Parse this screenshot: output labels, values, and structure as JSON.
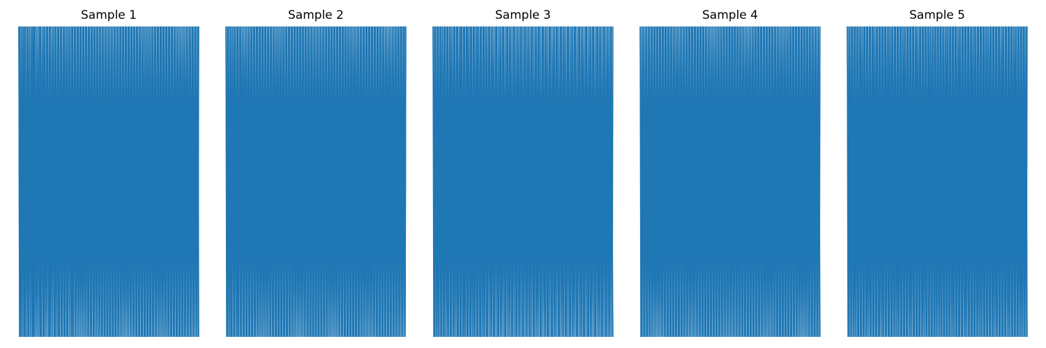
{
  "figure": {
    "background": "#ffffff"
  },
  "chart_data": [
    {
      "type": "line",
      "title": "Sample 1",
      "axis_visible": false,
      "grid": false,
      "color": "#1f77b4",
      "xlim": [
        0,
        1
      ],
      "ylim": [
        0,
        1
      ],
      "description_values": "series oscillates between ~0 and ~1 across the full x range",
      "x": [
        0.0,
        0.004,
        0.006,
        0.011,
        0.015,
        0.018,
        0.024,
        0.03,
        0.036,
        0.041,
        0.048,
        0.054,
        0.061,
        0.065,
        0.07,
        0.075,
        0.078,
        0.085,
        0.09,
        0.096,
        0.108,
        0.112,
        0.119,
        0.124,
        0.131,
        0.138,
        0.145,
        0.15,
        0.16,
        0.168,
        0.175,
        0.18,
        0.192,
        0.2,
        0.206,
        0.212,
        0.218,
        0.224,
        0.233,
        0.24,
        0.248,
        0.255,
        0.262,
        0.27,
        0.278,
        0.29,
        0.296,
        0.302,
        0.31,
        0.318,
        0.326,
        0.334,
        0.341,
        0.35,
        0.358,
        0.366,
        0.374,
        0.382,
        0.39,
        0.398,
        0.406,
        0.414,
        0.42,
        0.428,
        0.436,
        0.444,
        0.452,
        0.46,
        0.468,
        0.476,
        0.484,
        0.492,
        0.5,
        0.508,
        0.516,
        0.524,
        0.532,
        0.54,
        0.548,
        0.556,
        0.564,
        0.572,
        0.58,
        0.588,
        0.596,
        0.604,
        0.612,
        0.62,
        0.628,
        0.636,
        0.644,
        0.652,
        0.66,
        0.668,
        0.676,
        0.684,
        0.692,
        0.7,
        0.708,
        0.716,
        0.724,
        0.732,
        0.74,
        0.748,
        0.756,
        0.764,
        0.772,
        0.78,
        0.788,
        0.796,
        0.804,
        0.812,
        0.82,
        0.828,
        0.836,
        0.844,
        0.852,
        0.86,
        0.868,
        0.876,
        0.884,
        0.892,
        0.9,
        0.908,
        0.916,
        0.924,
        0.932,
        0.94,
        0.948,
        0.956,
        0.964,
        0.972,
        0.98,
        0.988,
        0.996,
        1.0
      ],
      "y": [
        1,
        0,
        1,
        0,
        1,
        0,
        1,
        0,
        1,
        0,
        1,
        0,
        1,
        0,
        1,
        0,
        1,
        0,
        1,
        0,
        1,
        0,
        1,
        0,
        1,
        0,
        1,
        0,
        1,
        0,
        1,
        0,
        1,
        0,
        1,
        0,
        1,
        0,
        1,
        0,
        1,
        0,
        1,
        0,
        1,
        0,
        1,
        0,
        1,
        0,
        1,
        0,
        1,
        0,
        1,
        0,
        1,
        0,
        1,
        0,
        1,
        0,
        1,
        0,
        1,
        0,
        1,
        0,
        1,
        0,
        1,
        0,
        1,
        0,
        1,
        0,
        1,
        0,
        1,
        0,
        1,
        0,
        1,
        0,
        1,
        0,
        1,
        0,
        1,
        0,
        1,
        0,
        1,
        0,
        1,
        0,
        1,
        0,
        1,
        0,
        1,
        0,
        1,
        0,
        1,
        0,
        1,
        0,
        1,
        0,
        1,
        0,
        1,
        0,
        1,
        0,
        1,
        0,
        1,
        0,
        1,
        0,
        1,
        0,
        1,
        0,
        1,
        0,
        1,
        0,
        1,
        0,
        1,
        0,
        1,
        0
      ]
    },
    {
      "type": "line",
      "title": "Sample 2",
      "axis_visible": false,
      "grid": false,
      "color": "#1f77b4",
      "xlim": [
        0,
        1
      ],
      "ylim": [
        0,
        1
      ],
      "x": [
        0.0,
        0.006,
        0.012,
        0.019,
        0.025,
        0.031,
        0.038,
        0.045,
        0.052,
        0.058,
        0.065,
        0.071,
        0.078,
        0.085,
        0.092,
        0.1,
        0.108,
        0.116,
        0.124,
        0.132,
        0.14,
        0.148,
        0.156,
        0.164,
        0.172,
        0.18,
        0.188,
        0.196,
        0.204,
        0.212,
        0.22,
        0.228,
        0.236,
        0.244,
        0.252,
        0.26,
        0.268,
        0.276,
        0.284,
        0.292,
        0.3,
        0.308,
        0.316,
        0.324,
        0.332,
        0.34,
        0.348,
        0.356,
        0.364,
        0.372,
        0.38,
        0.388,
        0.396,
        0.404,
        0.412,
        0.42,
        0.428,
        0.436,
        0.444,
        0.452,
        0.46,
        0.468,
        0.476,
        0.484,
        0.492,
        0.5,
        0.508,
        0.516,
        0.524,
        0.532,
        0.54,
        0.548,
        0.556,
        0.564,
        0.572,
        0.58,
        0.588,
        0.596,
        0.604,
        0.612,
        0.62,
        0.628,
        0.636,
        0.644,
        0.652,
        0.66,
        0.668,
        0.676,
        0.684,
        0.692,
        0.7,
        0.708,
        0.716,
        0.724,
        0.732,
        0.74,
        0.748,
        0.756,
        0.764,
        0.772,
        0.78,
        0.788,
        0.796,
        0.804,
        0.812,
        0.82,
        0.828,
        0.836,
        0.844,
        0.852,
        0.86,
        0.868,
        0.876,
        0.884,
        0.892,
        0.9,
        0.908,
        0.916,
        0.924,
        0.932,
        0.94,
        0.948,
        0.956,
        0.964,
        0.972,
        0.98,
        0.988,
        0.996,
        1.0
      ],
      "y": [
        1,
        0,
        1,
        0,
        1,
        0,
        1,
        0,
        1,
        0,
        1,
        0,
        1,
        0,
        1,
        0,
        1,
        0,
        1,
        0,
        1,
        0,
        1,
        0,
        1,
        0,
        1,
        0,
        1,
        0,
        1,
        0,
        1,
        0,
        1,
        0,
        1,
        0,
        1,
        0,
        1,
        0,
        1,
        0,
        1,
        0,
        1,
        0,
        1,
        0,
        1,
        0,
        1,
        0,
        1,
        0,
        1,
        0,
        1,
        0,
        1,
        0,
        1,
        0,
        1,
        0,
        1,
        0,
        1,
        0,
        1,
        0,
        1,
        0,
        1,
        0,
        1,
        0,
        1,
        0,
        1,
        0,
        1,
        0,
        1,
        0,
        1,
        0,
        1,
        0,
        1,
        0,
        1,
        0,
        1,
        0,
        1,
        0,
        1,
        0,
        1,
        0,
        1,
        0,
        1,
        0,
        1,
        0,
        1,
        0,
        1,
        0,
        1,
        0,
        1,
        0,
        1,
        0,
        1,
        0,
        1,
        0,
        1,
        0,
        1,
        0,
        1,
        0,
        1
      ]
    },
    {
      "type": "line",
      "title": "Sample 3",
      "axis_visible": false,
      "grid": false,
      "color": "#1f77b4",
      "xlim": [
        0,
        1
      ],
      "ylim": [
        0,
        1
      ],
      "x": [
        0.0,
        0.007,
        0.013,
        0.02,
        0.027,
        0.033,
        0.04,
        0.047,
        0.053,
        0.06,
        0.067,
        0.073,
        0.08,
        0.087,
        0.093,
        0.1,
        0.107,
        0.113,
        0.12,
        0.127,
        0.133,
        0.14,
        0.147,
        0.153,
        0.16,
        0.167,
        0.173,
        0.18,
        0.187,
        0.193,
        0.2,
        0.207,
        0.213,
        0.22,
        0.227,
        0.233,
        0.24,
        0.247,
        0.253,
        0.26,
        0.267,
        0.273,
        0.28,
        0.287,
        0.293,
        0.3,
        0.31,
        0.32,
        0.33,
        0.34,
        0.35,
        0.36,
        0.37,
        0.38,
        0.39,
        0.4,
        0.41,
        0.42,
        0.43,
        0.44,
        0.45,
        0.46,
        0.47,
        0.48,
        0.49,
        0.5,
        0.51,
        0.52,
        0.53,
        0.54,
        0.55,
        0.56,
        0.57,
        0.58,
        0.59,
        0.6,
        0.61,
        0.62,
        0.63,
        0.64,
        0.65,
        0.66,
        0.67,
        0.68,
        0.69,
        0.7,
        0.71,
        0.72,
        0.73,
        0.74,
        0.75,
        0.76,
        0.77,
        0.78,
        0.79,
        0.8,
        0.81,
        0.82,
        0.83,
        0.84,
        0.85,
        0.86,
        0.87,
        0.88,
        0.89,
        0.9,
        0.91,
        0.92,
        0.93,
        0.94,
        0.95,
        0.96,
        0.97,
        0.98,
        0.99,
        1.0
      ],
      "y": [
        1,
        0,
        1,
        0,
        1,
        0,
        1,
        0,
        1,
        0,
        1,
        0,
        1,
        0,
        1,
        0,
        1,
        0,
        1,
        0,
        1,
        0,
        1,
        0,
        1,
        0,
        1,
        0,
        1,
        0,
        1,
        0,
        1,
        0,
        1,
        0,
        1,
        0,
        1,
        0,
        1,
        0,
        1,
        0,
        1,
        0,
        1,
        0,
        1,
        0,
        1,
        0,
        1,
        0,
        1,
        0,
        1,
        0,
        1,
        0,
        1,
        0,
        1,
        0,
        1,
        0,
        1,
        0,
        1,
        0,
        1,
        0,
        1,
        0,
        1,
        0,
        1,
        0,
        1,
        0,
        1,
        0,
        1,
        0,
        1,
        0,
        1,
        0,
        1,
        0,
        1,
        0,
        1,
        0,
        1,
        0,
        1,
        0,
        1,
        0,
        1,
        0,
        1,
        0,
        1,
        0,
        1,
        0,
        1,
        0,
        1,
        0,
        1,
        0,
        1,
        0
      ]
    },
    {
      "type": "line",
      "title": "Sample 4",
      "axis_visible": false,
      "grid": false,
      "color": "#1f77b4",
      "xlim": [
        0,
        1
      ],
      "ylim": [
        0,
        1
      ],
      "x": [
        0.0,
        0.008,
        0.016,
        0.024,
        0.032,
        0.04,
        0.048,
        0.056,
        0.064,
        0.072,
        0.08,
        0.088,
        0.096,
        0.104,
        0.112,
        0.12,
        0.128,
        0.136,
        0.144,
        0.152,
        0.16,
        0.168,
        0.176,
        0.184,
        0.192,
        0.2,
        0.208,
        0.216,
        0.224,
        0.232,
        0.24,
        0.248,
        0.256,
        0.264,
        0.272,
        0.28,
        0.288,
        0.296,
        0.304,
        0.312,
        0.32,
        0.328,
        0.336,
        0.344,
        0.352,
        0.36,
        0.368,
        0.376,
        0.384,
        0.392,
        0.4,
        0.408,
        0.416,
        0.424,
        0.432,
        0.44,
        0.448,
        0.456,
        0.464,
        0.472,
        0.48,
        0.488,
        0.496,
        0.504,
        0.512,
        0.52,
        0.528,
        0.536,
        0.544,
        0.552,
        0.56,
        0.568,
        0.576,
        0.584,
        0.592,
        0.6,
        0.608,
        0.616,
        0.624,
        0.632,
        0.64,
        0.648,
        0.656,
        0.664,
        0.672,
        0.68,
        0.688,
        0.696,
        0.704,
        0.712,
        0.72,
        0.728,
        0.736,
        0.744,
        0.752,
        0.76,
        0.768,
        0.776,
        0.784,
        0.792,
        0.8,
        0.808,
        0.816,
        0.824,
        0.832,
        0.84,
        0.848,
        0.856,
        0.864,
        0.872,
        0.88,
        0.888,
        0.896,
        0.904,
        0.912,
        0.92,
        0.928,
        0.936,
        0.944,
        0.952,
        0.96,
        0.968,
        0.976,
        0.984,
        0.992,
        1.0
      ],
      "y": [
        1,
        0,
        1,
        0,
        1,
        0,
        1,
        0,
        1,
        0,
        1,
        0,
        1,
        0,
        1,
        0,
        1,
        0,
        1,
        0,
        1,
        0,
        1,
        0,
        1,
        0,
        1,
        0,
        1,
        0,
        1,
        0,
        1,
        0,
        1,
        0,
        1,
        0,
        1,
        0,
        1,
        0,
        1,
        0,
        1,
        0,
        1,
        0,
        1,
        0,
        1,
        0,
        1,
        0,
        1,
        0,
        1,
        0,
        1,
        0,
        1,
        0,
        1,
        0,
        1,
        0,
        1,
        0,
        1,
        0,
        1,
        0,
        1,
        0,
        1,
        0,
        1,
        0,
        1,
        0,
        1,
        0,
        1,
        0,
        1,
        0,
        1,
        0,
        1,
        0,
        1,
        0,
        1,
        0,
        1,
        0,
        1,
        0,
        1,
        0,
        1,
        0,
        1,
        0,
        1,
        0,
        1,
        0,
        1,
        0,
        1,
        0,
        1,
        0,
        1,
        0,
        1,
        0,
        1,
        0,
        1,
        0,
        1,
        0,
        1,
        0
      ]
    },
    {
      "type": "line",
      "title": "Sample 5",
      "axis_visible": false,
      "grid": false,
      "color": "#1f77b4",
      "xlim": [
        0,
        1
      ],
      "ylim": [
        0,
        1
      ],
      "x": [
        0.0,
        0.007,
        0.014,
        0.021,
        0.028,
        0.035,
        0.042,
        0.049,
        0.056,
        0.063,
        0.07,
        0.077,
        0.084,
        0.091,
        0.098,
        0.105,
        0.112,
        0.119,
        0.126,
        0.133,
        0.14,
        0.147,
        0.154,
        0.161,
        0.168,
        0.175,
        0.182,
        0.189,
        0.196,
        0.203,
        0.21,
        0.217,
        0.224,
        0.231,
        0.238,
        0.245,
        0.252,
        0.259,
        0.266,
        0.273,
        0.28,
        0.287,
        0.294,
        0.301,
        0.308,
        0.315,
        0.322,
        0.329,
        0.336,
        0.343,
        0.35,
        0.357,
        0.364,
        0.371,
        0.378,
        0.385,
        0.392,
        0.399,
        0.406,
        0.413,
        0.42,
        0.427,
        0.434,
        0.441,
        0.448,
        0.455,
        0.462,
        0.469,
        0.476,
        0.483,
        0.49,
        0.497,
        0.504,
        0.511,
        0.518,
        0.525,
        0.532,
        0.539,
        0.546,
        0.553,
        0.56,
        0.567,
        0.574,
        0.581,
        0.588,
        0.595,
        0.602,
        0.609,
        0.616,
        0.623,
        0.63,
        0.637,
        0.644,
        0.651,
        0.658,
        0.665,
        0.672,
        0.679,
        0.686,
        0.693,
        0.7,
        0.707,
        0.714,
        0.721,
        0.728,
        0.735,
        0.742,
        0.749,
        0.756,
        0.763,
        0.77,
        0.777,
        0.784,
        0.791,
        0.798,
        0.805,
        0.812,
        0.819,
        0.826,
        0.833,
        0.84,
        0.847,
        0.854,
        0.861,
        0.868,
        0.875,
        0.882,
        0.889,
        0.896,
        0.903,
        0.91,
        0.917,
        0.924,
        0.931,
        0.938,
        0.945,
        0.952,
        0.959,
        0.966,
        0.973,
        0.98,
        0.987,
        0.994,
        1.0
      ],
      "y": [
        1,
        0,
        1,
        0,
        1,
        0,
        1,
        0,
        1,
        0,
        1,
        0,
        1,
        0,
        1,
        0,
        1,
        0,
        1,
        0,
        1,
        0,
        1,
        0,
        1,
        0,
        1,
        0,
        1,
        0,
        1,
        0,
        1,
        0,
        1,
        0,
        1,
        0,
        1,
        0,
        1,
        0,
        1,
        0,
        1,
        0,
        1,
        0,
        1,
        0,
        1,
        0,
        1,
        0,
        1,
        0,
        1,
        0,
        1,
        0,
        1,
        0,
        1,
        0,
        1,
        0,
        1,
        0,
        1,
        0,
        1,
        0,
        1,
        0,
        1,
        0,
        1,
        0,
        1,
        0,
        1,
        0,
        1,
        0,
        1,
        0,
        1,
        0,
        1,
        0,
        1,
        0,
        1,
        0,
        1,
        0,
        1,
        0,
        1,
        0,
        1,
        0,
        1,
        0,
        1,
        0,
        1,
        0,
        1,
        0,
        1,
        0,
        1,
        0,
        1,
        0,
        1,
        0,
        1,
        0,
        1,
        0,
        1,
        0,
        1,
        0,
        1,
        0,
        1,
        0,
        1,
        0,
        1,
        0,
        1,
        0,
        1,
        0,
        1,
        0,
        1,
        0,
        1,
        0
      ]
    }
  ]
}
